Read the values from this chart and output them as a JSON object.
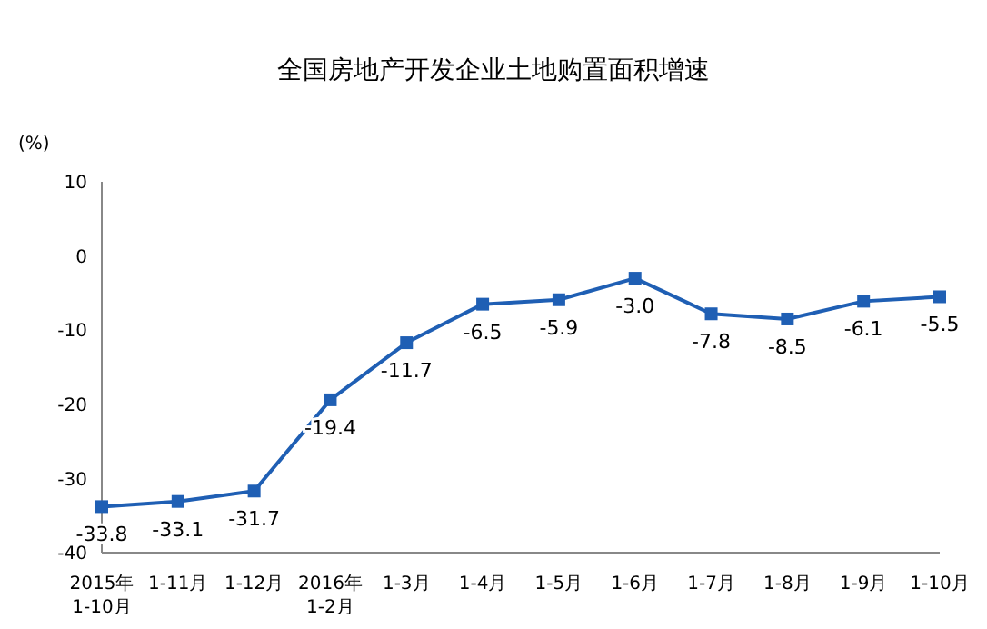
{
  "chart_data": {
    "type": "line",
    "title": "全国房地产开发企业土地购置面积增速",
    "ylabel": "(%)",
    "categories": [
      "2015年\n1-10月",
      "1-11月",
      "1-12月",
      "2016年\n1-2月",
      "1-3月",
      "1-4月",
      "1-5月",
      "1-6月",
      "1-7月",
      "1-8月",
      "1-9月",
      "1-10月"
    ],
    "series": [
      {
        "color": "#1f5fb4",
        "values": [
          -33.8,
          -33.1,
          -31.7,
          -19.4,
          -11.7,
          -6.5,
          -5.9,
          -3.0,
          -7.8,
          -8.5,
          -6.1,
          -5.5
        ],
        "value_labels": [
          "-33.8",
          "-33.1",
          "-31.7",
          "-19.4",
          "-11.7",
          "-6.5",
          "-5.9",
          "-3.0",
          "-7.8",
          "-8.5",
          "-6.1",
          "-5.5"
        ]
      }
    ],
    "ylim": [
      -40,
      10
    ],
    "yticks": [
      -40,
      -30,
      -20,
      -10,
      0,
      10
    ],
    "grid": false,
    "legend": false,
    "marker": "square",
    "line_style": "solid"
  }
}
